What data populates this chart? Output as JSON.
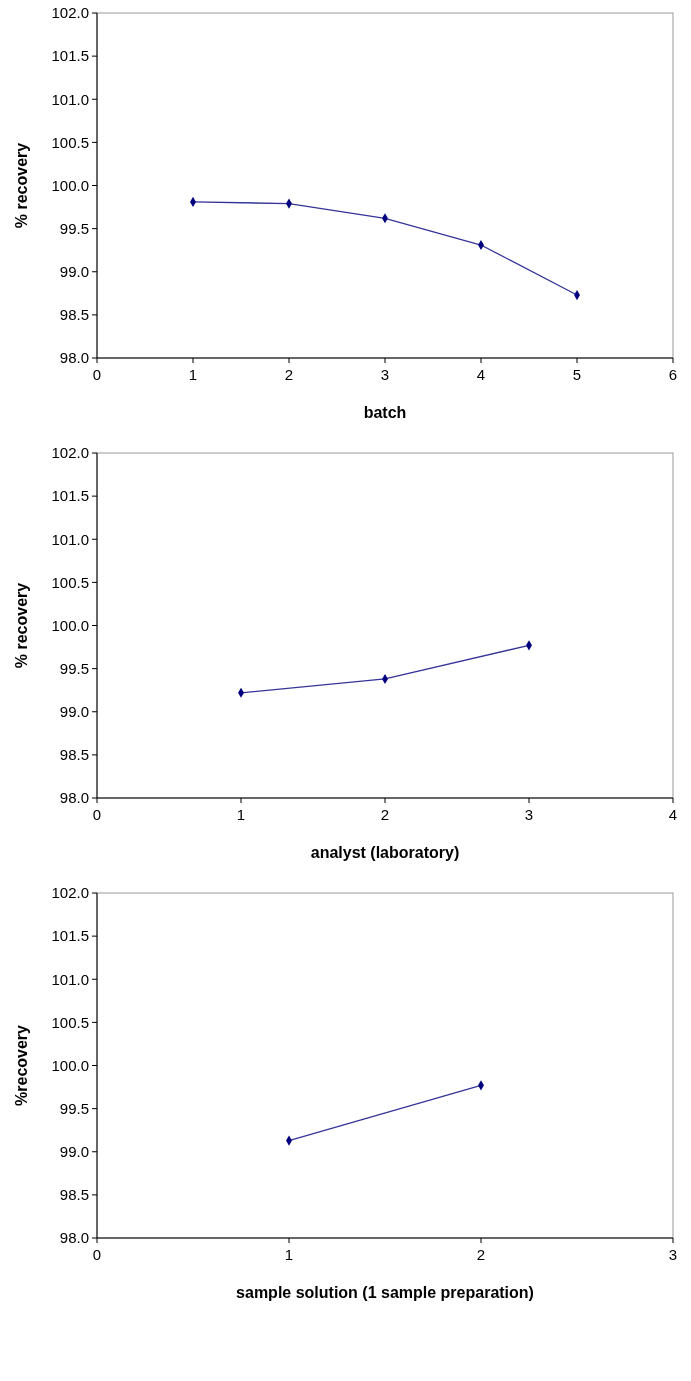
{
  "chart_data": [
    {
      "type": "line",
      "xlabel": "batch",
      "ylabel": "% recovery",
      "x": [
        1,
        2,
        3,
        4,
        5
      ],
      "xlim": [
        0,
        6
      ],
      "xticks": [
        0,
        1,
        2,
        3,
        4,
        5,
        6
      ],
      "ylim": [
        98,
        102
      ],
      "yticks": [
        {
          "value": 98,
          "label": "98.0"
        },
        {
          "value": 98.5,
          "label": "98.5"
        },
        {
          "value": 99,
          "label": "99.0"
        },
        {
          "value": 99.5,
          "label": "99.5"
        },
        {
          "value": 100,
          "label": "100.0"
        },
        {
          "value": 100.5,
          "label": "100.5"
        },
        {
          "value": 101,
          "label": "101.0"
        },
        {
          "value": 101.5,
          "label": "101.5"
        },
        {
          "value": 102,
          "label": "102.0"
        }
      ],
      "marker": "diamond",
      "grid": false,
      "series": [
        {
          "color": "#000080",
          "values": [
            99.81,
            99.79,
            99.62,
            99.31,
            98.73
          ]
        }
      ]
    },
    {
      "type": "line",
      "xlabel": "analyst (laboratory)",
      "ylabel": "% recovery",
      "x": [
        1,
        2,
        3
      ],
      "xlim": [
        0,
        4
      ],
      "xticks": [
        0,
        1,
        2,
        3,
        4
      ],
      "ylim": [
        98,
        102
      ],
      "yticks": [
        {
          "value": 98,
          "label": "98.0"
        },
        {
          "value": 98.5,
          "label": "98.5"
        },
        {
          "value": 99,
          "label": "99.0"
        },
        {
          "value": 99.5,
          "label": "99.5"
        },
        {
          "value": 100,
          "label": "100.0"
        },
        {
          "value": 100.5,
          "label": "100.5"
        },
        {
          "value": 101,
          "label": "101.0"
        },
        {
          "value": 101.5,
          "label": "101.5"
        },
        {
          "value": 102,
          "label": "102.0"
        }
      ],
      "marker": "diamond",
      "grid": false,
      "series": [
        {
          "color": "#000080",
          "values": [
            99.22,
            99.38,
            99.77
          ]
        }
      ]
    },
    {
      "type": "line",
      "xlabel": "sample solution (1 sample preparation)",
      "ylabel": "%recovery",
      "x": [
        1,
        2
      ],
      "xlim": [
        0,
        3
      ],
      "xticks": [
        0,
        1,
        2,
        3
      ],
      "ylim": [
        98,
        102
      ],
      "yticks": [
        {
          "value": 98,
          "label": "98.0"
        },
        {
          "value": 98.5,
          "label": "98.5"
        },
        {
          "value": 99,
          "label": "99.0"
        },
        {
          "value": 99.5,
          "label": "99.5"
        },
        {
          "value": 100,
          "label": "100.0"
        },
        {
          "value": 100.5,
          "label": "100.5"
        },
        {
          "value": 101,
          "label": "101.0"
        },
        {
          "value": 101.5,
          "label": "101.5"
        },
        {
          "value": 102,
          "label": "102.0"
        }
      ],
      "marker": "diamond",
      "grid": false,
      "series": [
        {
          "color": "#000080",
          "values": [
            99.13,
            99.77
          ]
        }
      ]
    }
  ]
}
